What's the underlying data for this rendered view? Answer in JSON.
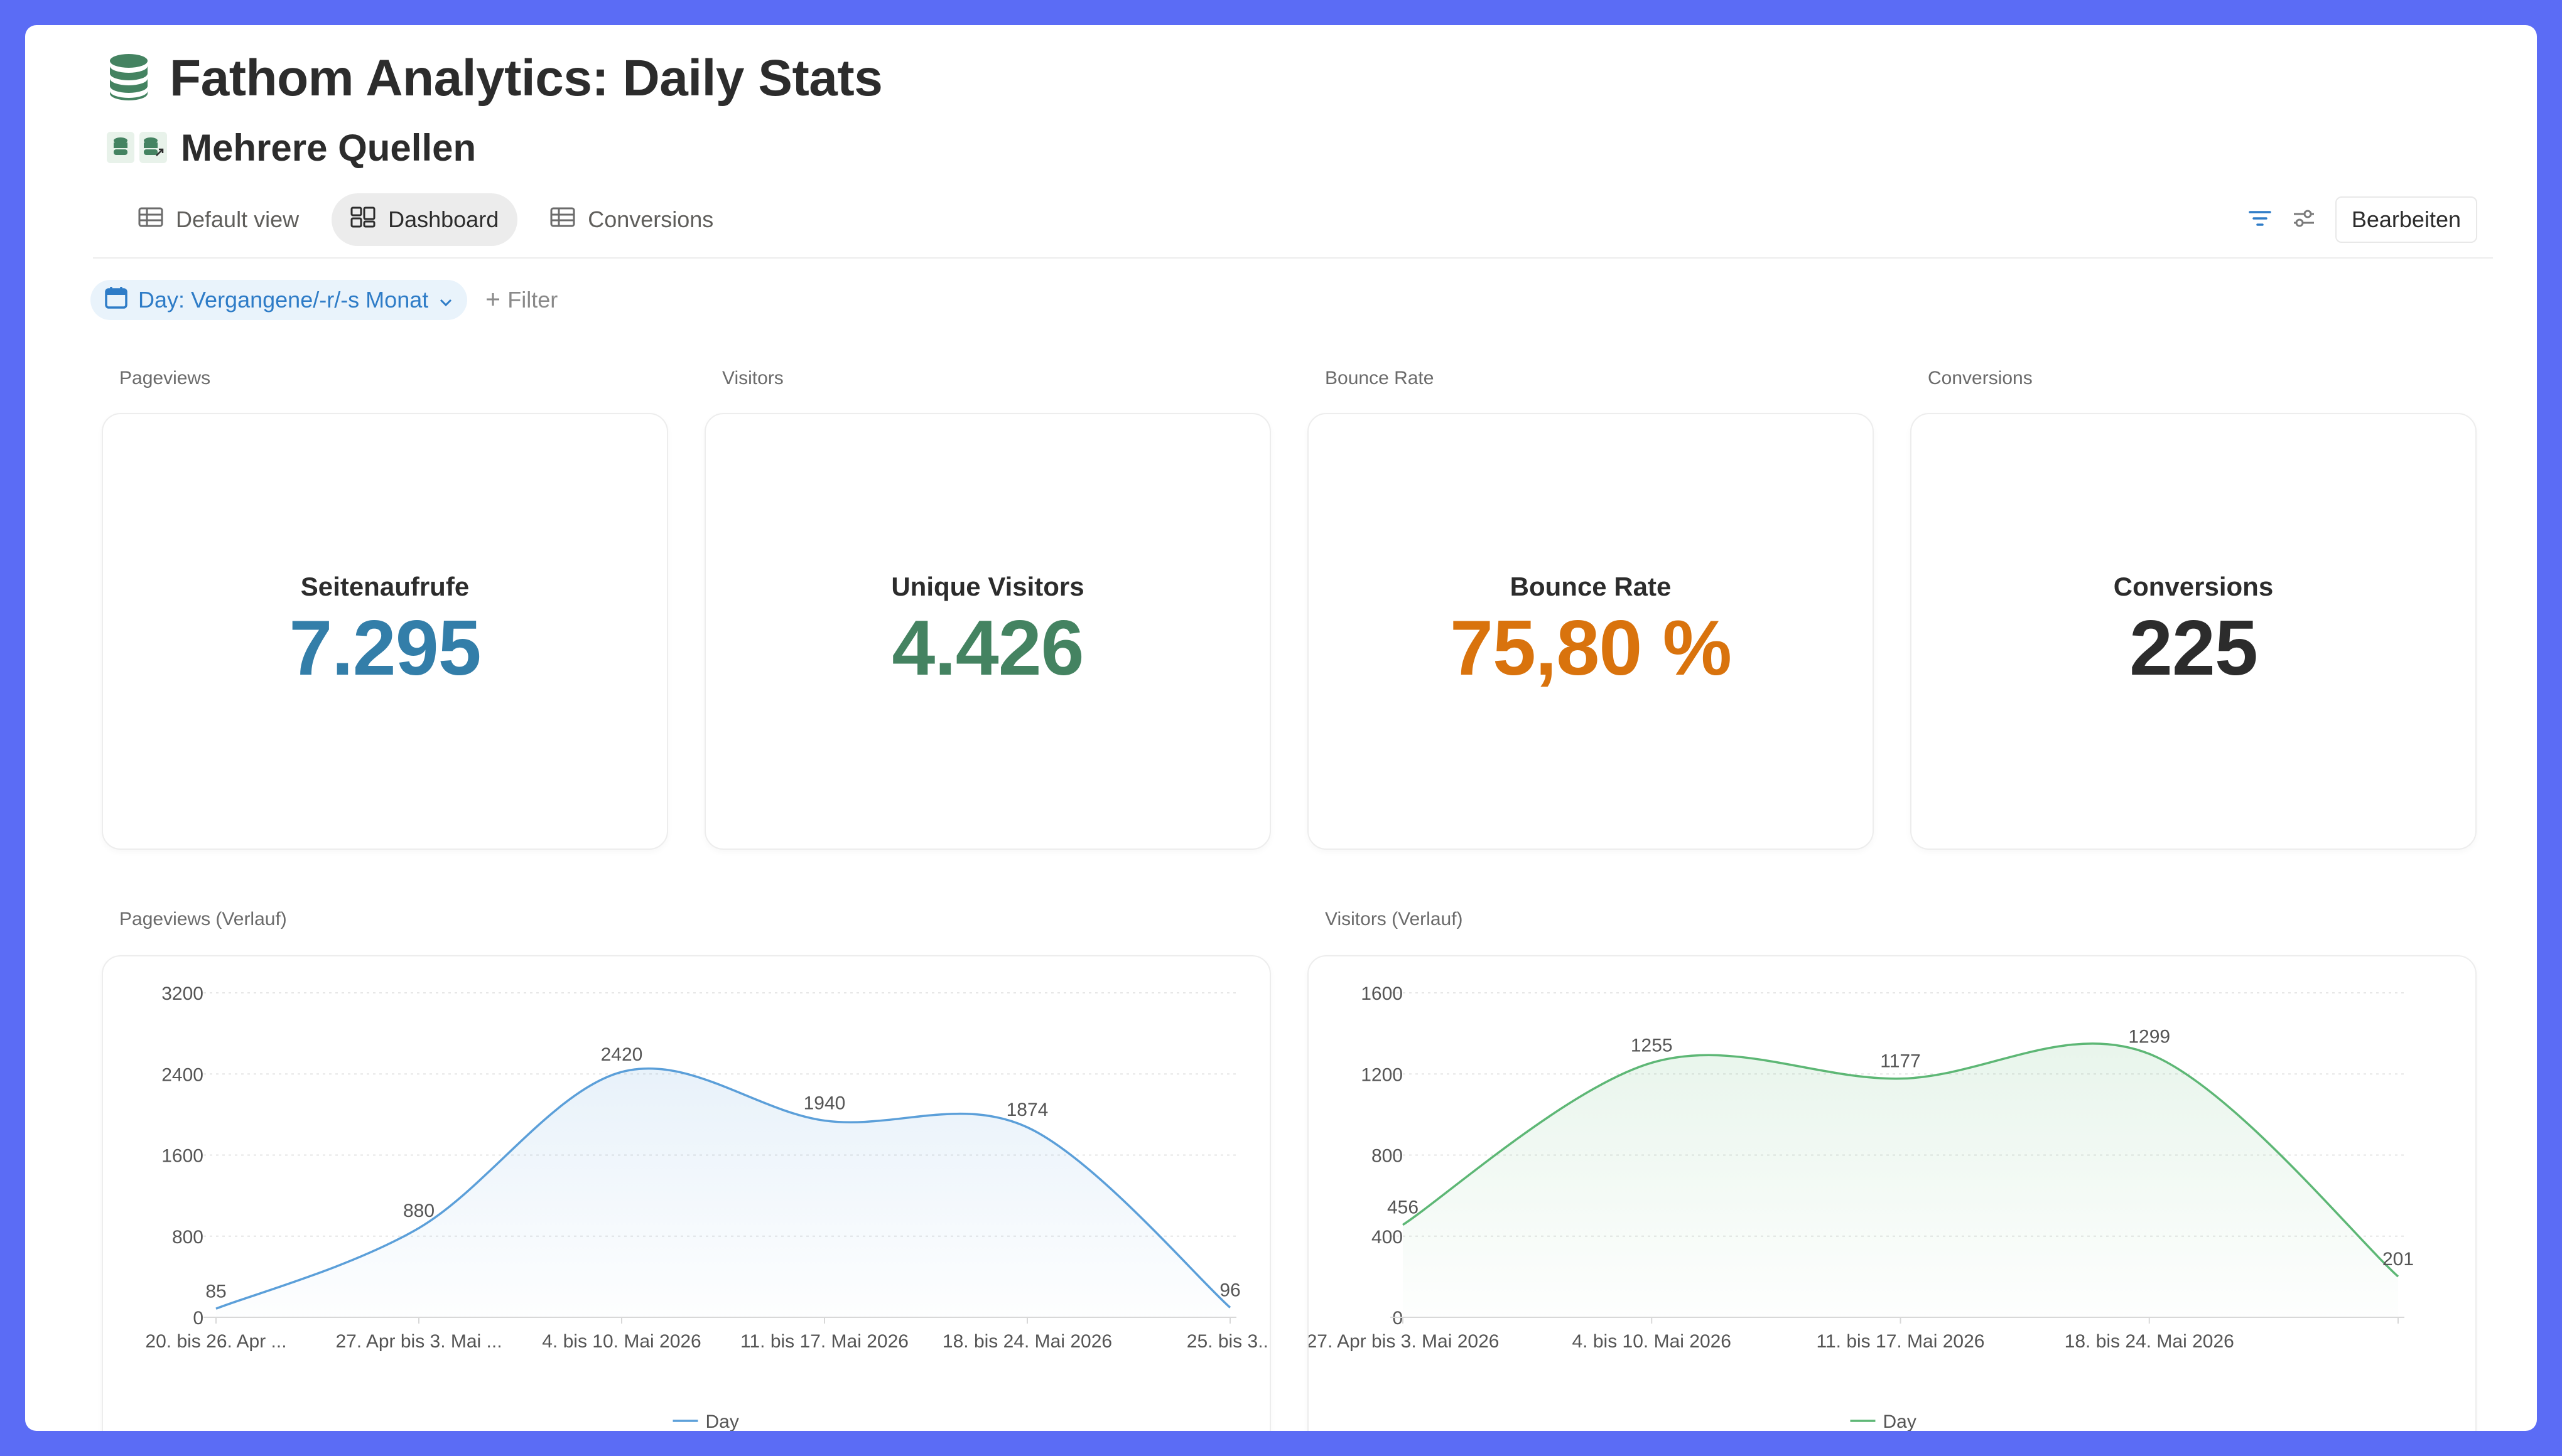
{
  "page": {
    "title": "Fathom Analytics: Daily Stats",
    "subtitle": "Mehrere Quellen"
  },
  "icons": {
    "title": "database-icon",
    "source_a": "database-icon",
    "source_b": "database-link-icon"
  },
  "tabs": [
    {
      "label": "Default view",
      "icon": "table-icon",
      "active": false
    },
    {
      "label": "Dashboard",
      "icon": "dashboard-icon",
      "active": true
    },
    {
      "label": "Conversions",
      "icon": "table-icon",
      "active": false
    }
  ],
  "toolbar": {
    "edit_label": "Bearbeiten",
    "filter_icon": "filter-icon",
    "settings_icon": "sliders-icon"
  },
  "filters": {
    "chip_label": "Day: Vergangene/-r/-s Monat",
    "add_label": "Filter"
  },
  "kpis": [
    {
      "section": "Pageviews",
      "label": "Seitenaufrufe",
      "value": "7.295",
      "color": "#337EA9"
    },
    {
      "section": "Visitors",
      "label": "Unique Visitors",
      "value": "4.426",
      "color": "#448361"
    },
    {
      "section": "Bounce Rate",
      "label": "Bounce Rate",
      "value": "75,80 %",
      "color": "#D9730D"
    },
    {
      "section": "Conversions",
      "label": "Conversions",
      "value": "225",
      "color": "#2c2c2c"
    }
  ],
  "colors": {
    "accent": "#2e7cc7",
    "pageviews_line": "#5B9FD9",
    "visitors_line": "#5DB775",
    "background": "#5B6CF5"
  },
  "chart_data": [
    {
      "section": "Pageviews (Verlauf)",
      "type": "area",
      "x": [
        "20. bis 26. Apr ...",
        "27. Apr bis 3. Mai ...",
        "4. bis 10. Mai 2026",
        "11. bis 17. Mai 2026",
        "18. bis 24. Mai 2026",
        "25. bis 3..."
      ],
      "yticks": [
        "3200",
        "2400",
        "1600",
        "800",
        "0"
      ],
      "ylim": [
        0,
        3200
      ],
      "series": [
        {
          "name": "Day",
          "values": [
            85,
            880,
            2420,
            1940,
            1874,
            96
          ],
          "labels": [
            "85",
            "880",
            "2420",
            "1940",
            "1874",
            "96"
          ]
        }
      ],
      "legend": "bottom",
      "grid": true
    },
    {
      "section": "Visitors (Verlauf)",
      "type": "area",
      "x": [
        "27. Apr bis 3. Mai 2026",
        "4. bis 10. Mai 2026",
        "11. bis 17. Mai 2026",
        "18. bis 24. Mai 2026",
        ""
      ],
      "yticks": [
        "1600",
        "1200",
        "800",
        "400",
        "0"
      ],
      "ylim": [
        0,
        1600
      ],
      "series": [
        {
          "name": "Day",
          "values": [
            456,
            1255,
            1177,
            1299,
            201
          ],
          "labels": [
            "456",
            "1255",
            "1177",
            "1299",
            "201"
          ]
        }
      ],
      "legend": "bottom",
      "grid": true
    }
  ]
}
